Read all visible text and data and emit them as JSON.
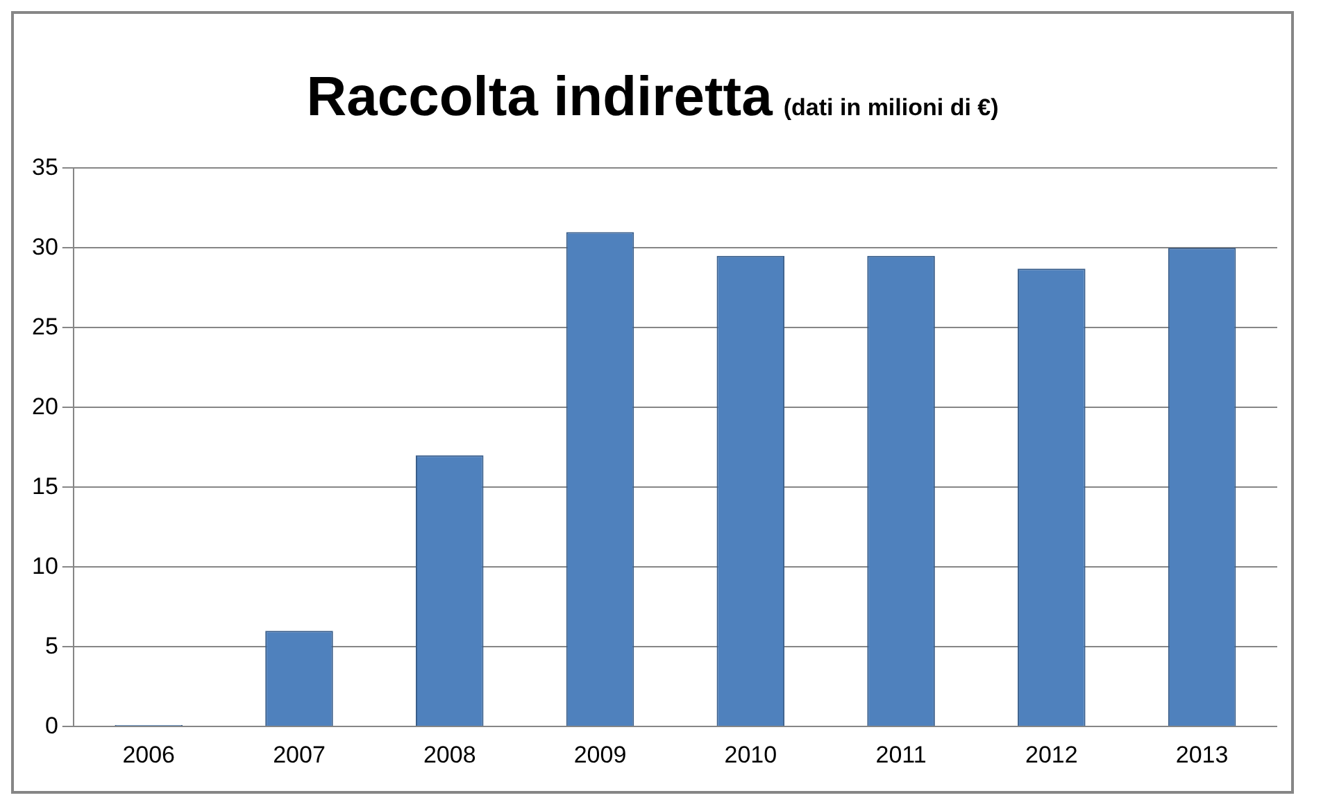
{
  "chart_data": {
    "type": "bar",
    "title": "Raccolta indiretta",
    "subtitle": "(dati in milioni di €)",
    "categories": [
      "2006",
      "2007",
      "2008",
      "2009",
      "2010",
      "2011",
      "2012",
      "2013"
    ],
    "values": [
      0.1,
      6,
      17,
      31,
      29.5,
      29.5,
      28.7,
      30
    ],
    "color": "#4f81bd",
    "ylim": [
      0,
      35
    ],
    "yticks": [
      0,
      5,
      10,
      15,
      20,
      25,
      30,
      35
    ],
    "grid": "y",
    "legend": false
  }
}
